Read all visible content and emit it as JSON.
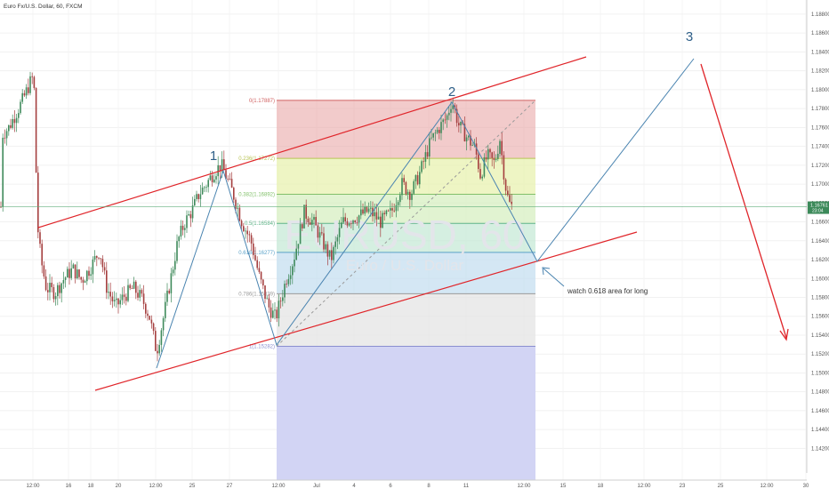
{
  "chart_data": {
    "type": "candlestick",
    "title": "Euro Fx/U.S. Dollar, 60, FXCM",
    "watermark": {
      "symbol": "EURUSD, 60",
      "description": "Euro / U.S. Dollar"
    },
    "yaxis": {
      "range": [
        1.1394,
        1.1895
      ],
      "ticks": [
        "1.18800",
        "1.18600",
        "1.18400",
        "1.18200",
        "1.18000",
        "1.17800",
        "1.17600",
        "1.17400",
        "1.17200",
        "1.17000",
        "1.16800",
        "1.16600",
        "1.16400",
        "1.16200",
        "1.16000",
        "1.15800",
        "1.15600",
        "1.15400",
        "1.15200",
        "1.15000",
        "1.14800",
        "1.14600",
        "1.14400",
        "1.14200"
      ]
    },
    "xaxis": {
      "ticks": [
        "12:00",
        "16",
        "18",
        "20",
        "12:00",
        "25",
        "27",
        "12:00",
        "Jul",
        "4",
        "6",
        "8",
        "11",
        "12:00",
        "15",
        "18",
        "12:00",
        "23",
        "25",
        "12:00",
        "30"
      ]
    },
    "last_price": {
      "value": 1.1676,
      "label": "1.16761",
      "sublabel": "23:04"
    },
    "fibonacci": {
      "levels": [
        {
          "ratio": 0,
          "label": "0(1.17887)",
          "price": 1.17887,
          "color": "#e8a1a1"
        },
        {
          "ratio": 0.236,
          "label": "0.236(1.17272)",
          "price": 1.17272,
          "color": "#e8f2b0"
        },
        {
          "ratio": 0.382,
          "label": "0.382(1.16892)",
          "price": 1.16892,
          "color": "#d7efc1"
        },
        {
          "ratio": 0.5,
          "label": "0.5(1.16584)",
          "price": 1.16584,
          "color": "#c7ead7"
        },
        {
          "ratio": 0.618,
          "label": "0.618(1.16277)",
          "price": 1.16277,
          "color": "#c5dff0"
        },
        {
          "ratio": 0.786,
          "label": "0.786(1.15839)",
          "price": 1.15839,
          "color": "#e4e4e4"
        },
        {
          "ratio": 1,
          "label": "1(1.15282)",
          "price": 1.15282,
          "color": "#d2d4f4"
        }
      ]
    },
    "wave_labels": [
      "1",
      "2",
      "3"
    ],
    "annotation": "watch 0.618 area for long",
    "colors": {
      "up": "#3f8a5b",
      "down": "#a53f3f",
      "channel": "#e0252a",
      "projection": "#4a84b0",
      "fib_zero": "#d06060"
    },
    "waypoints": [
      [
        1.1668,
        40
      ],
      [
        1.1661,
        48
      ],
      [
        1.1658,
        55
      ],
      [
        1.166,
        65
      ],
      [
        1.1655,
        70
      ],
      [
        1.1652,
        72
      ],
      [
        1.1645,
        75
      ],
      [
        1.1624,
        80
      ],
      [
        1.16,
        85
      ],
      [
        1.1589,
        90
      ],
      [
        1.1585,
        95
      ],
      [
        1.1588,
        100
      ],
      [
        1.1578,
        110
      ],
      [
        1.1568,
        130
      ],
      [
        1.1565,
        150
      ],
      [
        1.1558,
        170
      ],
      [
        1.1555,
        185
      ],
      [
        1.156,
        205
      ],
      [
        1.158,
        230
      ],
      [
        1.1602,
        250
      ],
      [
        1.1618,
        270
      ],
      [
        1.163,
        290
      ],
      [
        1.1648,
        300
      ],
      [
        1.1666,
        320
      ],
      [
        1.1682,
        340
      ],
      [
        1.1695,
        360
      ],
      [
        1.1708,
        380
      ],
      [
        1.1718,
        400
      ],
      [
        1.1725,
        420
      ],
      [
        1.173,
        440
      ],
      [
        1.1738,
        460
      ],
      [
        1.1745,
        480
      ],
      [
        1.1752,
        500
      ],
      [
        1.1758,
        505
      ],
      [
        1.175,
        520
      ],
      [
        1.174,
        530
      ],
      [
        1.1722,
        540
      ],
      [
        1.17,
        560
      ],
      [
        1.1684,
        575
      ]
    ],
    "candles_note": "Hourly EUR/USD candles from mid June to mid July, rising from about 1.1510 to a peak near 1.1789 before pulling back to about 1.1676."
  }
}
